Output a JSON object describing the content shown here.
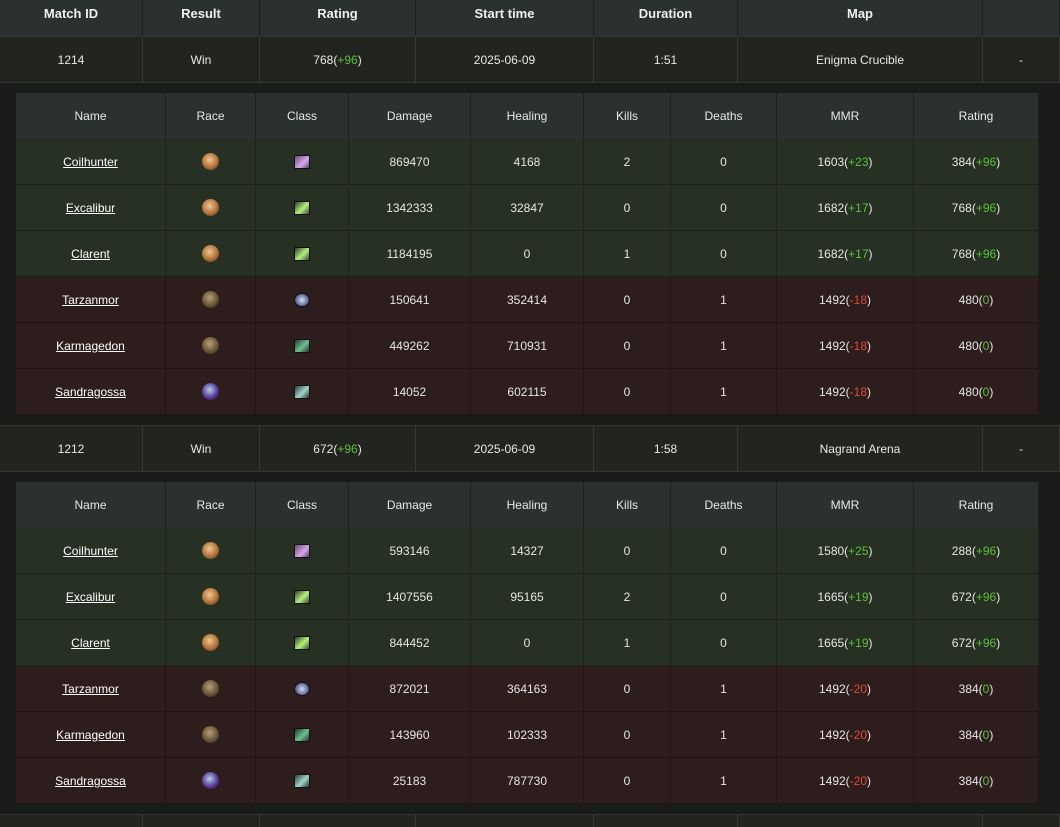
{
  "header": {
    "match_id": "Match ID",
    "result": "Result",
    "rating": "Rating",
    "start_time": "Start time",
    "duration": "Duration",
    "map": "Map",
    "extra": ""
  },
  "detail_header": {
    "name": "Name",
    "race": "Race",
    "class": "Class",
    "damage": "Damage",
    "healing": "Healing",
    "kills": "Kills",
    "deaths": "Deaths",
    "mmr": "MMR",
    "rating": "Rating"
  },
  "matches": [
    {
      "id": "1214",
      "result": "Win",
      "rating": "768",
      "rating_delta": "+96",
      "start_time": "2025-06-09",
      "duration": "1:51",
      "map": "Enigma Crucible",
      "extra": "-",
      "players": [
        {
          "name": "Coilhunter",
          "race": "human",
          "class": "rogue",
          "damage": "869470",
          "healing": "4168",
          "kills": "2",
          "deaths": "0",
          "mmr": "1603",
          "mmr_delta": "+23",
          "rating": "384",
          "rating_delta": "+96",
          "team": "win"
        },
        {
          "name": "Excalibur",
          "race": "human",
          "class": "hunter",
          "damage": "1342333",
          "healing": "32847",
          "kills": "0",
          "deaths": "0",
          "mmr": "1682",
          "mmr_delta": "+17",
          "rating": "768",
          "rating_delta": "+96",
          "team": "win"
        },
        {
          "name": "Clarent",
          "race": "human",
          "class": "hunter",
          "damage": "1184195",
          "healing": "0",
          "kills": "1",
          "deaths": "0",
          "mmr": "1682",
          "mmr_delta": "+17",
          "rating": "768",
          "rating_delta": "+96",
          "team": "win"
        },
        {
          "name": "Tarzanmor",
          "race": "tauren",
          "class": "priest",
          "damage": "150641",
          "healing": "352414",
          "kills": "0",
          "deaths": "1",
          "mmr": "1492",
          "mmr_delta": "-18",
          "rating": "480",
          "rating_delta": "0",
          "team": "loss"
        },
        {
          "name": "Karmagedon",
          "race": "tauren",
          "class": "shaman",
          "damage": "449262",
          "healing": "710931",
          "kills": "0",
          "deaths": "1",
          "mmr": "1492",
          "mmr_delta": "-18",
          "rating": "480",
          "rating_delta": "0",
          "team": "loss"
        },
        {
          "name": "Sandragossa",
          "race": "troll",
          "class": "warrior",
          "damage": "14052",
          "healing": "602115",
          "kills": "0",
          "deaths": "1",
          "mmr": "1492",
          "mmr_delta": "-18",
          "rating": "480",
          "rating_delta": "0",
          "team": "loss"
        }
      ]
    },
    {
      "id": "1212",
      "result": "Win",
      "rating": "672",
      "rating_delta": "+96",
      "start_time": "2025-06-09",
      "duration": "1:58",
      "map": "Nagrand Arena",
      "extra": "-",
      "players": [
        {
          "name": "Coilhunter",
          "race": "human",
          "class": "rogue",
          "damage": "593146",
          "healing": "14327",
          "kills": "0",
          "deaths": "0",
          "mmr": "1580",
          "mmr_delta": "+25",
          "rating": "288",
          "rating_delta": "+96",
          "team": "win"
        },
        {
          "name": "Excalibur",
          "race": "human",
          "class": "hunter",
          "damage": "1407556",
          "healing": "95165",
          "kills": "2",
          "deaths": "0",
          "mmr": "1665",
          "mmr_delta": "+19",
          "rating": "672",
          "rating_delta": "+96",
          "team": "win"
        },
        {
          "name": "Clarent",
          "race": "human",
          "class": "hunter",
          "damage": "844452",
          "healing": "0",
          "kills": "1",
          "deaths": "0",
          "mmr": "1665",
          "mmr_delta": "+19",
          "rating": "672",
          "rating_delta": "+96",
          "team": "win"
        },
        {
          "name": "Tarzanmor",
          "race": "tauren",
          "class": "priest",
          "damage": "872021",
          "healing": "364163",
          "kills": "0",
          "deaths": "1",
          "mmr": "1492",
          "mmr_delta": "-20",
          "rating": "384",
          "rating_delta": "0",
          "team": "loss"
        },
        {
          "name": "Karmagedon",
          "race": "tauren",
          "class": "shaman",
          "damage": "143960",
          "healing": "102333",
          "kills": "0",
          "deaths": "1",
          "mmr": "1492",
          "mmr_delta": "-20",
          "rating": "384",
          "rating_delta": "0",
          "team": "loss"
        },
        {
          "name": "Sandragossa",
          "race": "troll",
          "class": "warrior",
          "damage": "25183",
          "healing": "787730",
          "kills": "0",
          "deaths": "1",
          "mmr": "1492",
          "mmr_delta": "-20",
          "rating": "384",
          "rating_delta": "0",
          "team": "loss"
        }
      ]
    }
  ]
}
